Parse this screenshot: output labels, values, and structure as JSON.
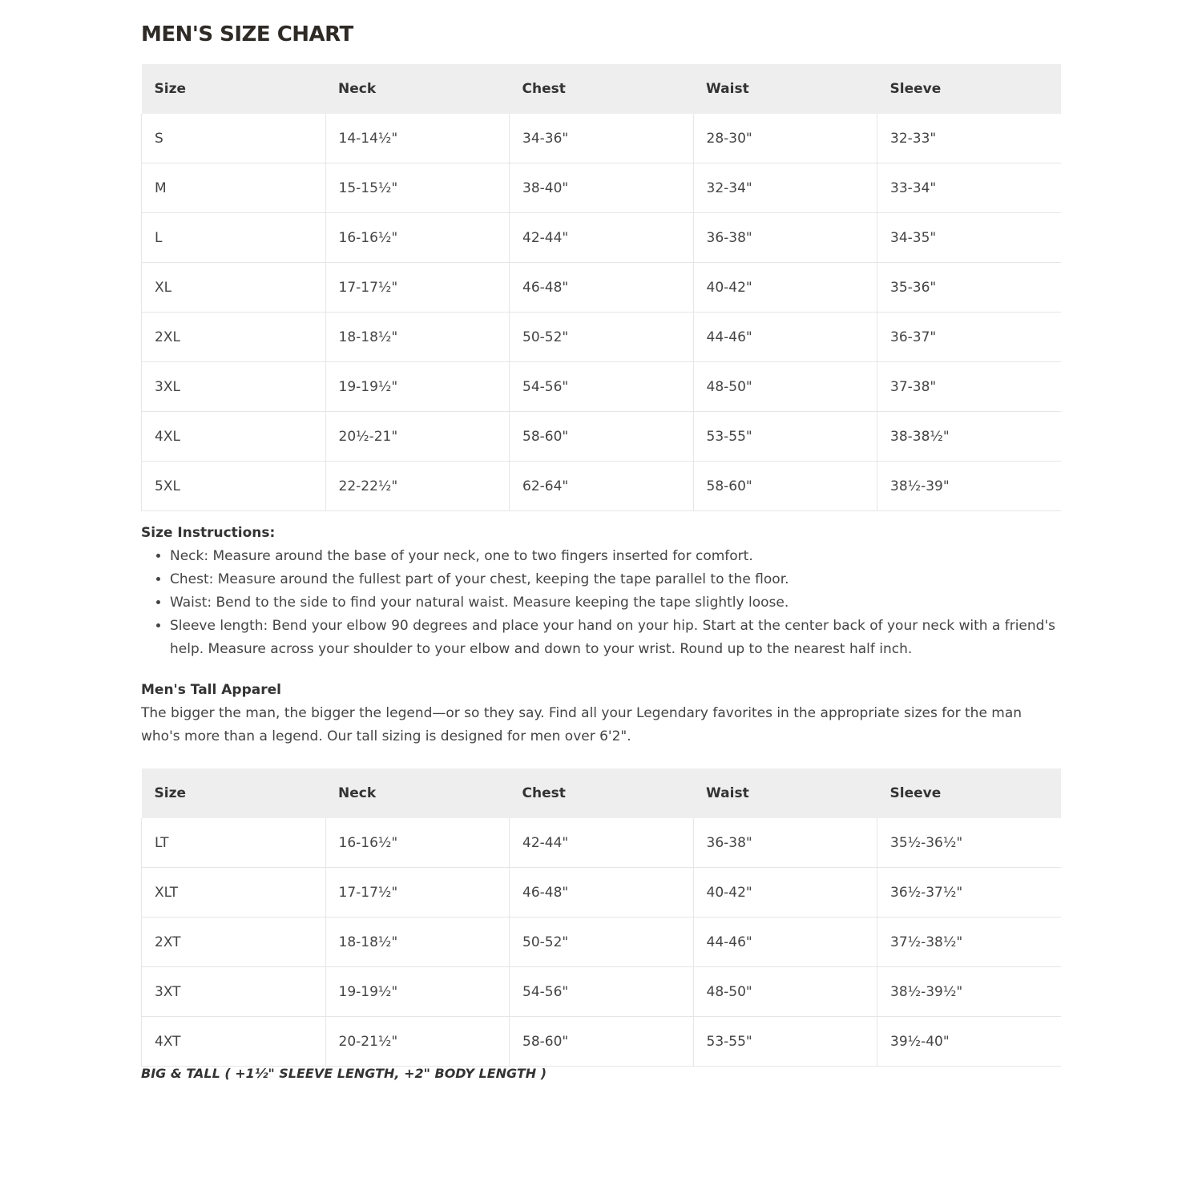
{
  "title": "MEN'S SIZE CHART",
  "headers": [
    "Size",
    "Neck",
    "Chest",
    "Waist",
    "Sleeve"
  ],
  "regular_table": [
    [
      "S",
      "14-14½\"",
      "34-36\"",
      "28-30\"",
      "32-33\""
    ],
    [
      "M",
      "15-15½\"",
      "38-40\"",
      "32-34\"",
      "33-34\""
    ],
    [
      "L",
      "16-16½\"",
      "42-44\"",
      "36-38\"",
      "34-35\""
    ],
    [
      "XL",
      "17-17½\"",
      "46-48\"",
      "40-42\"",
      "35-36\""
    ],
    [
      "2XL",
      "18-18½\"",
      "50-52\"",
      "44-46\"",
      "36-37\""
    ],
    [
      "3XL",
      "19-19½\"",
      "54-56\"",
      "48-50\"",
      "37-38\""
    ],
    [
      "4XL",
      "20½-21\"",
      "58-60\"",
      "53-55\"",
      "38-38½\""
    ],
    [
      "5XL",
      "22-22½\"",
      "62-64\"",
      "58-60\"",
      "38½-39\""
    ]
  ],
  "instructions": {
    "heading": "Size Instructions:",
    "items": [
      "Neck: Measure around the base of your neck, one to two fingers inserted for comfort.",
      "Chest: Measure around the fullest part of your chest, keeping the tape parallel to the floor.",
      "Waist: Bend to the side to find your natural waist. Measure keeping the tape slightly loose.",
      "Sleeve length: Bend your elbow 90 degrees and place your hand on your hip. Start at the center back of your neck with a friend's help. Measure across your shoulder to your elbow and down to your wrist. Round up to the nearest half inch."
    ]
  },
  "tall": {
    "heading": "Men's Tall Apparel",
    "text": "The bigger the man, the bigger the legend—or so they say. Find all your Legendary favorites in the appropriate sizes for the man who's more than a legend. Our tall sizing is designed for men over 6'2\"."
  },
  "tall_table": [
    [
      "LT",
      "16-16½\"",
      "42-44\"",
      "36-38\"",
      "35½-36½\""
    ],
    [
      "XLT",
      "17-17½\"",
      "46-48\"",
      "40-42\"",
      "36½-37½\""
    ],
    [
      "2XT",
      "18-18½\"",
      "50-52\"",
      "44-46\"",
      "37½-38½\""
    ],
    [
      "3XT",
      "19-19½\"",
      "54-56\"",
      "48-50\"",
      "38½-39½\""
    ],
    [
      "4XT",
      "20-21½\"",
      "58-60\"",
      "53-55\"",
      "39½-40\""
    ]
  ],
  "footnote": "BIG & TALL ( +1½\" SLEEVE LENGTH, +2\" BODY LENGTH )"
}
